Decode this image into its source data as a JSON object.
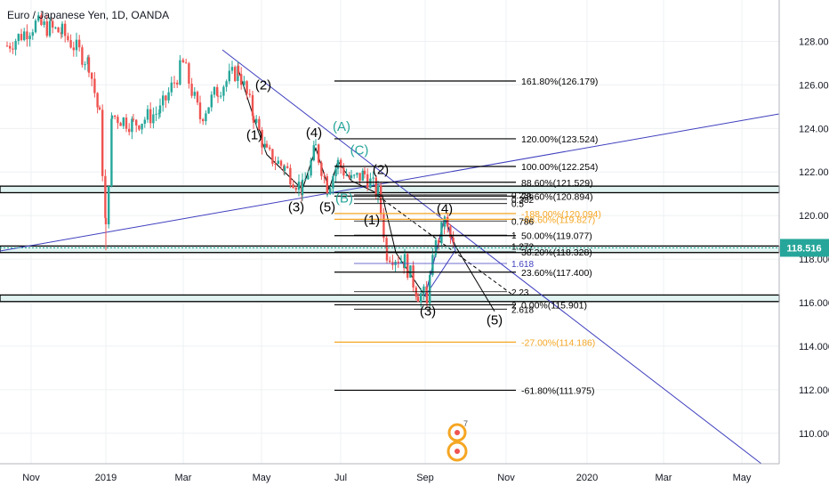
{
  "header": {
    "title": "Euro / Japanese Yen, 1D, OANDA"
  },
  "chart_data": {
    "type": "candlestick",
    "title": "Euro / Japanese Yen, 1D, OANDA",
    "ylim": [
      108.6,
      129.9
    ],
    "y_ticks": [
      {
        "value": 110,
        "label": "110.000"
      },
      {
        "value": 112,
        "label": "112.000"
      },
      {
        "value": 114,
        "label": "114.000"
      },
      {
        "value": 116,
        "label": "116.000"
      },
      {
        "value": 118,
        "label": "118.000"
      },
      {
        "value": 120,
        "label": "120.000"
      },
      {
        "value": 122,
        "label": "122.000"
      },
      {
        "value": 124,
        "label": "124.000"
      },
      {
        "value": 126,
        "label": "126.000"
      },
      {
        "value": 128,
        "label": "128.000"
      }
    ],
    "x_ticks": [
      "Nov",
      "2019",
      "Mar",
      "May",
      "Jul",
      "Sep",
      "Nov",
      "2020",
      "Mar",
      "May"
    ],
    "last_price": {
      "label": "118.516",
      "value": 118.516,
      "color": "#26a69a"
    },
    "colors": {
      "up": "#26a69a",
      "down": "#ef5350",
      "trend": "#3f3fbf",
      "grid": "#eef0f3",
      "orange": "#f5a623",
      "green_label": "#26a69a",
      "blue_label": "#3f3fbf"
    },
    "price_path": [
      [
        "Nov",
        128.6
      ],
      [
        "2019",
        126.6
      ],
      [
        "2019",
        118.6
      ],
      [
        "2019",
        124.5
      ],
      [
        "Mar",
        127.2
      ],
      [
        "Mar",
        125.0
      ],
      [
        "May",
        126.7
      ],
      [
        "May",
        123.4
      ],
      [
        "May",
        121.2
      ],
      [
        "Jul",
        123.2
      ],
      [
        "Jul",
        120.9
      ],
      [
        "Jul",
        122.4
      ],
      [
        "Jul",
        120.8
      ],
      [
        "Sep",
        117.6
      ],
      [
        "Sep",
        116.2
      ],
      [
        "Sep",
        119.8
      ],
      [
        "Sep",
        118.4
      ]
    ],
    "fib_levels": [
      {
        "value": 126.179,
        "label": "161.80%(126.179)",
        "color": "#000000"
      },
      {
        "value": 123.524,
        "label": "120.00%(123.524)",
        "color": "#000000"
      },
      {
        "value": 122.254,
        "label": "100.00%(122.254)",
        "color": "#000000"
      },
      {
        "value": 121.529,
        "label": "88.60%(121.529)",
        "color": "#000000"
      },
      {
        "value": 120.894,
        "label": "78.60%(120.894)",
        "color": "#000000"
      },
      {
        "value": 120.094,
        "label": "-188.00%(120.094)",
        "color": "#f5a623"
      },
      {
        "value": 119.827,
        "label": "-88.60%(119.827)",
        "color": "#f5a623"
      },
      {
        "value": 119.077,
        "label": "50.00%(119.077)",
        "color": "#000000"
      },
      {
        "value": 118.328,
        "label": "38.20%(118.328)",
        "color": "#000000"
      },
      {
        "value": 117.4,
        "label": "23.60%(117.400)",
        "color": "#000000"
      },
      {
        "value": 115.901,
        "label": "0.00%(115.901)",
        "color": "#000000"
      },
      {
        "value": 114.186,
        "label": "-27.00%(114.186)",
        "color": "#f5a623"
      },
      {
        "value": 111.975,
        "label": "-61.80%(111.975)",
        "color": "#000000"
      }
    ],
    "small_levels": [
      {
        "value": 120.95,
        "label": "0.236",
        "color": "#000000"
      },
      {
        "value": 120.75,
        "label": "0.382",
        "color": "#000000"
      },
      {
        "value": 120.55,
        "label": "0.5",
        "color": "#000000"
      },
      {
        "value": 119.75,
        "label": "0.786",
        "color": "#000000"
      },
      {
        "value": 119.1,
        "label": "1",
        "color": "#000000"
      },
      {
        "value": 118.6,
        "label": "1.272",
        "color": "#000000"
      },
      {
        "value": 117.8,
        "label": "1.618",
        "color": "#3f3fbf"
      },
      {
        "value": 116.5,
        "label": "2.23",
        "color": "#000000"
      },
      {
        "value": 115.9,
        "label": "2",
        "color": "#000000"
      },
      {
        "value": 115.7,
        "label": "2.618",
        "color": "#000000"
      }
    ],
    "zones": [
      {
        "low": 121.05,
        "high": 121.35
      },
      {
        "low": 118.3,
        "high": 118.6
      },
      {
        "low": 116.05,
        "high": 116.35
      }
    ],
    "wave_labels": [
      {
        "text": "(2)",
        "x": "May",
        "y": 125.8,
        "color": "#000000"
      },
      {
        "text": "(1)",
        "x": "May",
        "y": 123.5,
        "color": "#000000"
      },
      {
        "text": "(4)",
        "x": "Jun",
        "y": 123.6,
        "color": "#000000"
      },
      {
        "text": "(3)",
        "x": "Jun",
        "y": 120.2,
        "color": "#000000"
      },
      {
        "text": "(A)",
        "x": "Jul",
        "y": 123.9,
        "color": "#26a69a"
      },
      {
        "text": "(C)",
        "x": "Jul",
        "y": 122.8,
        "color": "#26a69a"
      },
      {
        "text": "(5)",
        "x": "Jul",
        "y": 120.2,
        "color": "#000000"
      },
      {
        "text": "(B)",
        "x": "Jul",
        "y": 120.6,
        "color": "#26a69a"
      },
      {
        "text": "(2)",
        "x": "Jul",
        "y": 121.9,
        "color": "#000000"
      },
      {
        "text": "(1)",
        "x": "Aug",
        "y": 119.6,
        "color": "#000000"
      },
      {
        "text": "(4)",
        "x": "Sep",
        "y": 120.1,
        "color": "#000000"
      },
      {
        "text": "(3)",
        "x": "Sep",
        "y": 115.4,
        "color": "#000000"
      },
      {
        "text": "(5)",
        "x": "Oct",
        "y": 115.0,
        "color": "#000000"
      }
    ],
    "watermark": {
      "text": "7",
      "color": "#f5a623"
    }
  }
}
